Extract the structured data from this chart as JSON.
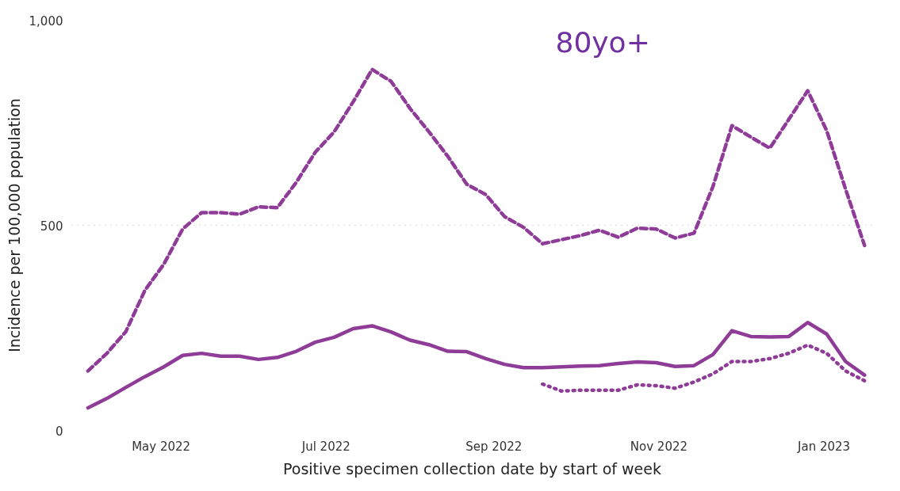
{
  "chart_data": {
    "type": "line",
    "xlabel": "Positive specimen collection date by start of week",
    "ylabel": "Incidence per 100,000 population",
    "annotations": [
      "80yo+"
    ],
    "x": [
      "2022-04-04",
      "2022-04-11",
      "2022-04-18",
      "2022-04-25",
      "2022-05-02",
      "2022-05-09",
      "2022-05-16",
      "2022-05-23",
      "2022-05-30",
      "2022-06-06",
      "2022-06-13",
      "2022-06-20",
      "2022-06-27",
      "2022-07-04",
      "2022-07-11",
      "2022-07-18",
      "2022-07-25",
      "2022-08-01",
      "2022-08-08",
      "2022-08-15",
      "2022-08-22",
      "2022-08-29",
      "2022-09-05",
      "2022-09-12",
      "2022-09-19",
      "2022-09-26",
      "2022-10-03",
      "2022-10-10",
      "2022-10-17",
      "2022-10-24",
      "2022-10-31",
      "2022-11-07",
      "2022-11-14",
      "2022-11-21",
      "2022-11-28",
      "2022-12-05",
      "2022-12-12",
      "2022-12-19",
      "2022-12-26",
      "2023-01-02",
      "2023-01-09",
      "2023-01-16"
    ],
    "series": [
      {
        "color": "#8e3c97",
        "line_style": "dashed",
        "values": [
          145,
          188,
          241,
          341,
          405,
          491,
          531,
          531,
          527,
          545,
          543,
          605,
          678,
          728,
          801,
          880,
          851,
          785,
          728,
          668,
          600,
          575,
          521,
          495,
          455,
          465,
          475,
          488,
          471,
          493,
          491,
          469,
          481,
          595,
          743,
          715,
          688,
          758,
          828,
          731,
          588,
          451
        ]
      },
      {
        "color": "#8e3c97",
        "line_style": "solid",
        "values": [
          55,
          78,
          105,
          131,
          155,
          183,
          188,
          181,
          181,
          173,
          178,
          193,
          215,
          227,
          248,
          255,
          240,
          220,
          209,
          193,
          192,
          175,
          161,
          153,
          153,
          155,
          157,
          158,
          163,
          167,
          165,
          156,
          158,
          185,
          243,
          229,
          228,
          229,
          263,
          235,
          168,
          135
        ]
      },
      {
        "color": "#8e3c97",
        "line_style": "dotted",
        "values": [
          null,
          null,
          null,
          null,
          null,
          null,
          null,
          null,
          null,
          null,
          null,
          null,
          null,
          null,
          null,
          null,
          null,
          null,
          null,
          null,
          null,
          null,
          null,
          null,
          113,
          96,
          98,
          98,
          98,
          111,
          109,
          103,
          118,
          138,
          168,
          168,
          175,
          188,
          208,
          188,
          145,
          121
        ]
      }
    ],
    "xlim": [
      "2022-03-29",
      "2023-01-19"
    ],
    "xticks": [
      {
        "value": "2022-05-01",
        "label": "May 2022"
      },
      {
        "value": "2022-07-01",
        "label": "Jul 2022"
      },
      {
        "value": "2022-09-01",
        "label": "Sep 2022"
      },
      {
        "value": "2022-11-01",
        "label": "Nov 2022"
      },
      {
        "value": "2023-01-01",
        "label": "Jan 2023"
      }
    ],
    "ylim": [
      0,
      1000
    ],
    "yticks": [
      0,
      500,
      {
        "value": 1000,
        "label": "1,000"
      }
    ],
    "grid": "y",
    "marker": "none"
  }
}
